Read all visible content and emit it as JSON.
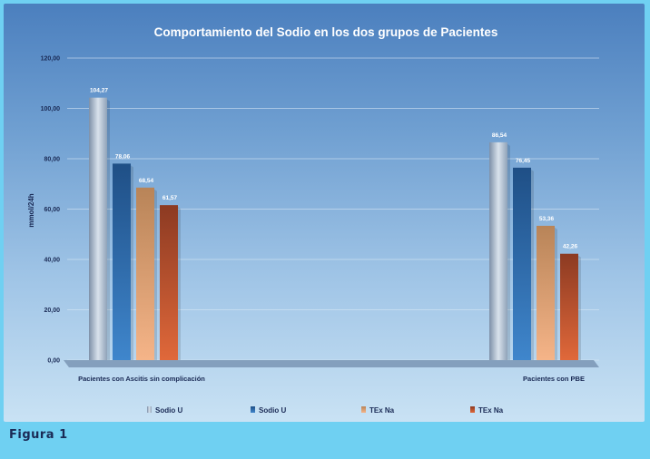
{
  "caption": "Figura 1",
  "chart_data": {
    "type": "bar",
    "title": "Comportamiento del Sodio en los dos grupos de Pacientes",
    "xlabel": "",
    "ylabel": "mmol/24h",
    "ylim": [
      0,
      120
    ],
    "yticks": [
      "0,00",
      "20,00",
      "40,00",
      "60,00",
      "80,00",
      "100,00",
      "120,00"
    ],
    "grid": true,
    "legend_position": "bottom",
    "categories": [
      "Pacientes con Ascitis sin complicación",
      "Pacientes con PBE"
    ],
    "series": [
      {
        "name": "Sodio U",
        "values": [
          104.27,
          86.54
        ],
        "labels": [
          "104,27",
          "86,54"
        ],
        "color": "#b8c6d6"
      },
      {
        "name": "Sodio U",
        "values": [
          78.06,
          76.45
        ],
        "labels": [
          "78,06",
          "76,45"
        ],
        "color": "#2f6fb0"
      },
      {
        "name": "TEx Na",
        "values": [
          68.54,
          53.36
        ],
        "labels": [
          "68,54",
          "53,36"
        ],
        "color": "#e8a070"
      },
      {
        "name": "TEx Na",
        "values": [
          61.57,
          42.26
        ],
        "labels": [
          "61,57",
          "42,26"
        ],
        "color": "#c85a30"
      }
    ]
  }
}
